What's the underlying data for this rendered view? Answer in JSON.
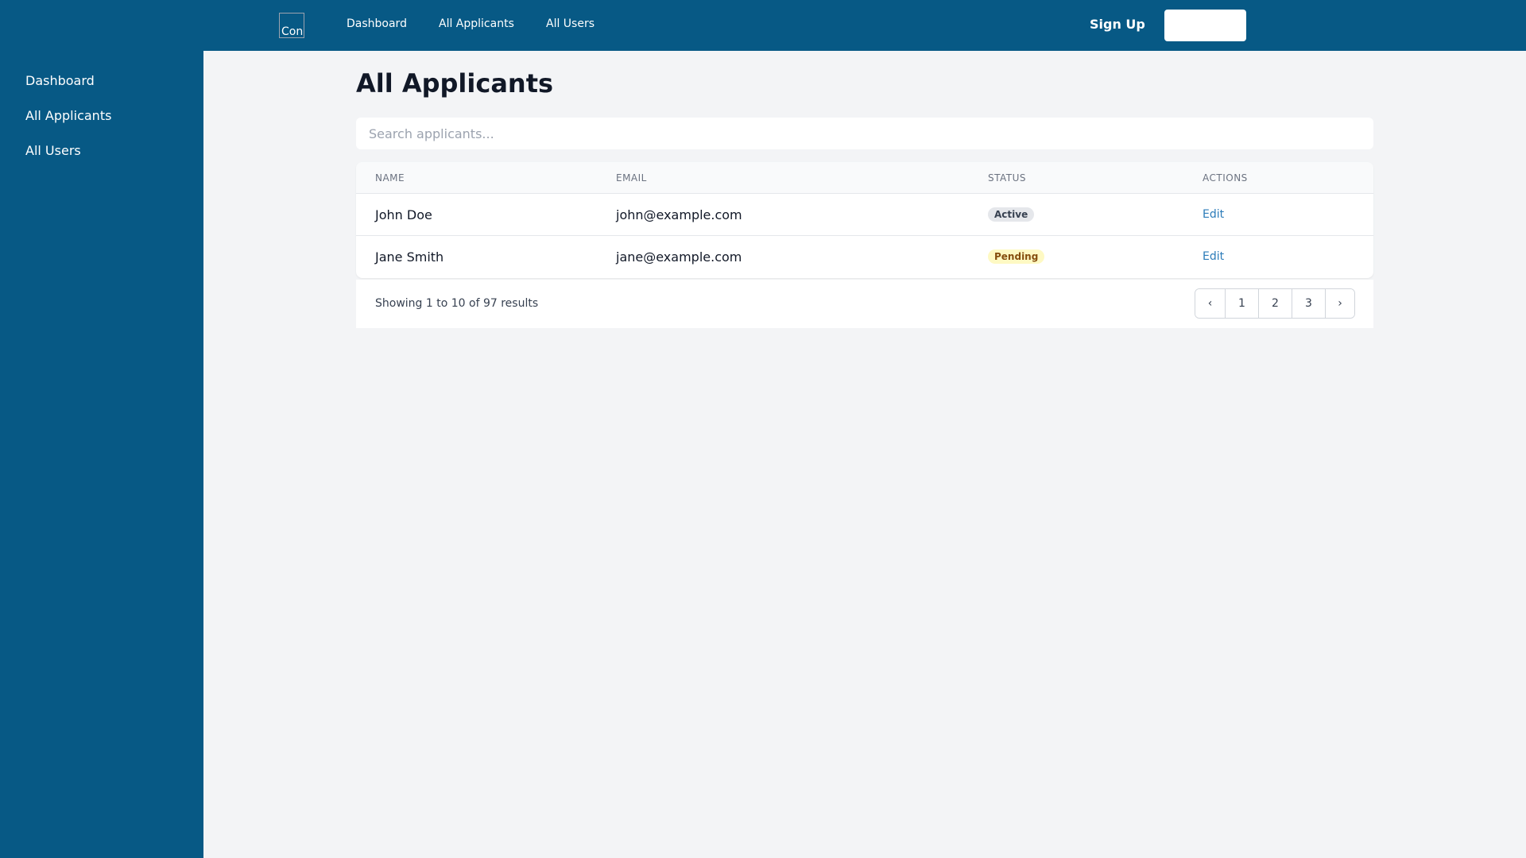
{
  "header": {
    "logo_alt": "Con",
    "nav": [
      "Dashboard",
      "All Applicants",
      "All Users"
    ],
    "sign_up": "Sign Up",
    "brand_color": "#075985"
  },
  "sidebar": {
    "items": [
      "Dashboard",
      "All Applicants",
      "All Users"
    ]
  },
  "main": {
    "title": "All Applicants",
    "search_placeholder": "Search applicants...",
    "columns": [
      "NAME",
      "EMAIL",
      "STATUS",
      "ACTIONS"
    ],
    "rows": [
      {
        "name": "John Doe",
        "email": "john@example.com",
        "status": "Active",
        "action": "Edit"
      },
      {
        "name": "Jane Smith",
        "email": "jane@example.com",
        "status": "Pending",
        "action": "Edit"
      }
    ],
    "showing": "Showing 1 to 10 of 97 results",
    "pagination": {
      "prev": "‹",
      "pages": [
        "1",
        "2",
        "3"
      ],
      "next": "›"
    }
  }
}
